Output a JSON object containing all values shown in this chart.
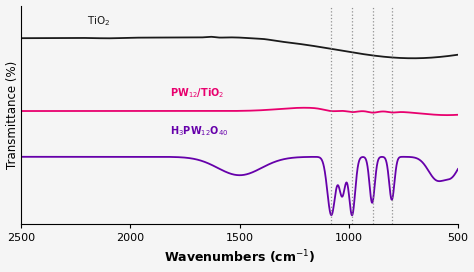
{
  "xlabel": "Wavenumbers (cm$^{-1}$)",
  "ylabel": "Transmittance (%)",
  "xlim": [
    2500,
    500
  ],
  "background_color": "#f5f5f5",
  "colors": {
    "tio2": "#1a1a1a",
    "pw12_tio2": "#e8006e",
    "h3pw12o40": "#6600aa"
  },
  "dashed_lines": [
    1080,
    985,
    890,
    800
  ],
  "labels": {
    "tio2": "TiO$_2$",
    "pw12_tio2": "PW$_{12}$/TiO$_2$",
    "h3pw12o40": "H$_3$PW$_{12}$O$_{40}$"
  },
  "label_positions": {
    "tio2": [
      2200,
      0.91
    ],
    "pw12_tio2": [
      1820,
      0.56
    ],
    "h3pw12o40": [
      1820,
      0.44
    ]
  }
}
